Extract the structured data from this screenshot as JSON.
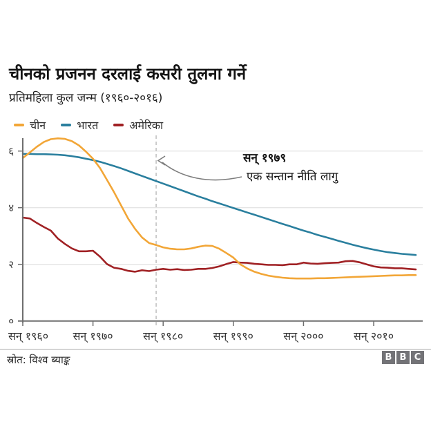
{
  "header": {
    "title": "चीनको प्रजनन दरलाई कसरी तुलना गर्ने",
    "subtitle": "प्रतिमहिला कुल जन्म (१९६०-२०१६)"
  },
  "footer": {
    "source": "स्रोत: विश्व ब्याङ्क",
    "logo": [
      "B",
      "B",
      "C"
    ]
  },
  "colors": {
    "china": "#F2A637",
    "india": "#2A7F9E",
    "usa": "#A02124",
    "grid": "#DCDCDC",
    "axis": "#6E6E6E",
    "tick_label": "#333333",
    "dashed_line": "#C2C2C2",
    "arrow": "#7C7C7C",
    "bbc_gray": "#737377"
  },
  "chart_data": {
    "type": "line",
    "title": "चीनको प्रजनन दरलाई कसरी तुलना गर्ने",
    "subtitle": "प्रतिमहिला कुल जन्म (१९६०-२०१६)",
    "xlabel": "",
    "ylabel": "",
    "x_start": 1960,
    "x_end": 2016,
    "xlim": [
      1960,
      2016
    ],
    "ylim": [
      0,
      6.6
    ],
    "grid": "horizontal",
    "legend_position": "top-left",
    "xticks": [
      {
        "year": 1960,
        "label": "सन् १९६०"
      },
      {
        "year": 1970,
        "label": "सन् १९७०"
      },
      {
        "year": 1980,
        "label": "सन् १९८०"
      },
      {
        "year": 1990,
        "label": "सन् १९९०"
      },
      {
        "year": 2000,
        "label": "सन् २०००"
      },
      {
        "year": 2010,
        "label": "सन् २०१०"
      }
    ],
    "yticks": [
      {
        "value": 0,
        "label": "०"
      },
      {
        "value": 2,
        "label": "२"
      },
      {
        "value": 4,
        "label": "४"
      },
      {
        "value": 6,
        "label": "६"
      }
    ],
    "annotation": {
      "year": 1979,
      "line1": "सन् १९७९",
      "line2": "एक सन्तान नीति लागु"
    },
    "series": [
      {
        "name": "चीन",
        "color": "#F2A637",
        "values": [
          5.75,
          5.95,
          6.15,
          6.32,
          6.42,
          6.45,
          6.43,
          6.35,
          6.2,
          5.98,
          5.73,
          5.4,
          4.98,
          4.55,
          4.08,
          3.62,
          3.25,
          2.95,
          2.75,
          2.68,
          2.6,
          2.55,
          2.53,
          2.53,
          2.56,
          2.62,
          2.66,
          2.65,
          2.55,
          2.4,
          2.24,
          2.0,
          1.85,
          1.74,
          1.66,
          1.6,
          1.56,
          1.53,
          1.51,
          1.5,
          1.5,
          1.5,
          1.51,
          1.51,
          1.52,
          1.53,
          1.54,
          1.55,
          1.56,
          1.57,
          1.58,
          1.59,
          1.6,
          1.61,
          1.61,
          1.62,
          1.62
        ]
      },
      {
        "name": "भारत",
        "color": "#2A7F9E",
        "values": [
          5.9,
          5.9,
          5.89,
          5.89,
          5.88,
          5.87,
          5.85,
          5.82,
          5.78,
          5.73,
          5.68,
          5.62,
          5.55,
          5.47,
          5.39,
          5.3,
          5.21,
          5.12,
          5.03,
          4.94,
          4.85,
          4.76,
          4.67,
          4.58,
          4.49,
          4.4,
          4.32,
          4.23,
          4.15,
          4.07,
          3.99,
          3.91,
          3.83,
          3.75,
          3.67,
          3.59,
          3.51,
          3.43,
          3.35,
          3.27,
          3.19,
          3.12,
          3.04,
          2.97,
          2.9,
          2.83,
          2.76,
          2.69,
          2.63,
          2.57,
          2.52,
          2.47,
          2.43,
          2.4,
          2.37,
          2.35,
          2.33
        ]
      },
      {
        "name": "अमेरिका",
        "color": "#A02124",
        "values": [
          3.65,
          3.62,
          3.46,
          3.32,
          3.19,
          2.91,
          2.72,
          2.56,
          2.46,
          2.46,
          2.48,
          2.27,
          2.01,
          1.88,
          1.84,
          1.77,
          1.74,
          1.79,
          1.76,
          1.81,
          1.84,
          1.81,
          1.83,
          1.8,
          1.81,
          1.84,
          1.84,
          1.87,
          1.93,
          2.01,
          2.08,
          2.06,
          2.05,
          2.02,
          2.0,
          1.98,
          1.98,
          1.97,
          2.0,
          2.0,
          2.06,
          2.03,
          2.02,
          2.04,
          2.05,
          2.06,
          2.11,
          2.12,
          2.07,
          2.0,
          1.93,
          1.89,
          1.88,
          1.86,
          1.86,
          1.84,
          1.82
        ]
      }
    ]
  }
}
